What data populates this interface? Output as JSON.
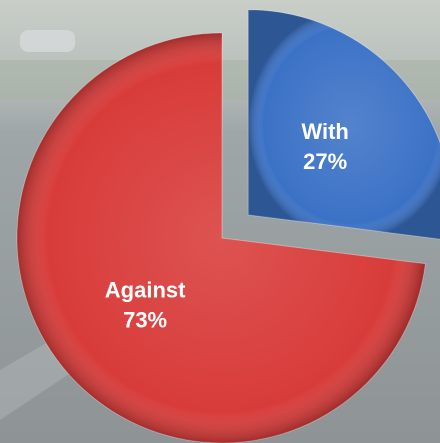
{
  "chart_data": {
    "type": "pie",
    "categories": [
      "With",
      "Against"
    ],
    "values": [
      27,
      73
    ],
    "value_labels": [
      "27%",
      "73%"
    ],
    "colors": [
      "#3c72c6",
      "#d83c3a"
    ],
    "exploded": [
      true,
      false
    ]
  }
}
